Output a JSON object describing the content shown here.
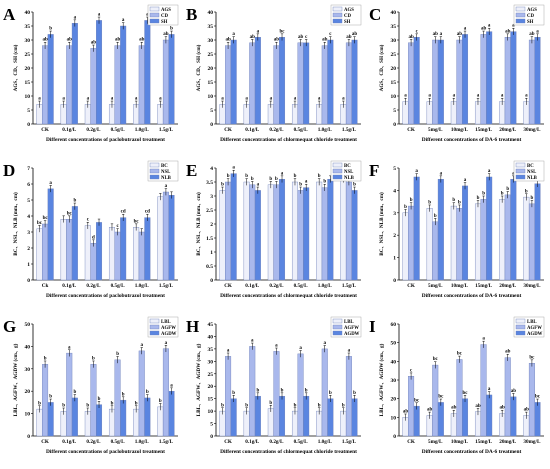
{
  "colors": {
    "s1": "#eef0fa",
    "s2": "#a9b8ec",
    "s3": "#5a85e0",
    "axis": "#000000",
    "err": "#000000"
  },
  "chart_data": [
    {
      "panel": "A",
      "type": "bar",
      "ylabel": "AGS、CD、SH (cm)",
      "xlabel": "Different concentrations of paclobutrazol treatment",
      "ylim": [
        0,
        40
      ],
      "yticks": [
        0,
        5,
        10,
        15,
        20,
        25,
        30,
        35,
        40
      ],
      "categories": [
        "CK",
        "0.1g/L",
        "0.2g/L",
        "0.5g/L",
        "1.0g/L",
        "1.5g/L"
      ],
      "series": [
        {
          "name": "AGS",
          "values": [
            7,
            7,
            7,
            7,
            7,
            7
          ],
          "letters": [
            "a",
            "a",
            "a",
            "a",
            "a",
            "a"
          ]
        },
        {
          "name": "CD",
          "values": [
            28,
            28,
            27,
            28,
            28,
            30
          ],
          "letters": [
            "ab",
            "ab",
            "ab",
            "ab",
            "ab",
            "ab"
          ]
        },
        {
          "name": "SH",
          "values": [
            32,
            36,
            37,
            35,
            37,
            32
          ],
          "letters": [
            "b",
            "a",
            "a",
            "a",
            "a",
            "b"
          ]
        }
      ]
    },
    {
      "panel": "B",
      "type": "bar",
      "ylabel": "AGS、CD、SH (cm)",
      "xlabel": "Different concentrations of chlormequat chloride treatment",
      "ylim": [
        0,
        40
      ],
      "yticks": [
        0,
        5,
        10,
        15,
        20,
        25,
        30,
        35,
        40
      ],
      "categories": [
        "CK",
        "0.1g/L",
        "0.2g/L",
        "0.5g/L",
        "1.0g/L",
        "1.5g/L"
      ],
      "series": [
        {
          "name": "AGS",
          "values": [
            7,
            7,
            7,
            7,
            7,
            7
          ],
          "letters": [
            "a",
            "a",
            "a",
            "a",
            "a",
            "a"
          ]
        },
        {
          "name": "CD",
          "values": [
            28,
            29,
            28,
            29,
            28,
            29
          ],
          "letters": [
            "ab",
            "ab",
            "ab",
            "ab",
            "ab",
            "ab"
          ]
        },
        {
          "name": "SH",
          "values": [
            30,
            31,
            31,
            29,
            30,
            30
          ],
          "letters": [
            "a",
            "a",
            "bc",
            "c",
            "c",
            "ab"
          ]
        }
      ]
    },
    {
      "panel": "C",
      "type": "bar",
      "ylabel": "AGS、CD、SH (cm)",
      "xlabel": "Different concentrations of DA-6 treatment",
      "ylim": [
        0,
        40
      ],
      "yticks": [
        0,
        5,
        10,
        15,
        20,
        25,
        30,
        35,
        40
      ],
      "categories": [
        "CK",
        "5mg/L",
        "10mg/L",
        "15mg/L",
        "20mg/L",
        "30mg/L"
      ],
      "series": [
        {
          "name": "AGS",
          "values": [
            8,
            8,
            8,
            8,
            8,
            8
          ],
          "letters": [
            "a",
            "a",
            "a",
            "a",
            "a",
            "a"
          ]
        },
        {
          "name": "CD",
          "values": [
            29,
            30,
            30,
            32,
            31,
            30
          ],
          "letters": [
            "ab",
            "ab",
            "ab",
            "ab",
            "ab",
            "ab"
          ]
        },
        {
          "name": "SH",
          "values": [
            31,
            30,
            32,
            33,
            33,
            31
          ],
          "letters": [
            "c",
            "a",
            "a",
            "a",
            "a",
            "a"
          ]
        }
      ]
    },
    {
      "panel": "D",
      "type": "bar",
      "ylabel": "BC、NSL、NLB (mm、cm)",
      "xlabel": "Different concentrations of paclobutrazol treatment",
      "ylim": [
        0,
        7
      ],
      "yticks": [
        0,
        1,
        2,
        3,
        4,
        5,
        6,
        7
      ],
      "categories": [
        "Ck",
        "0.1g/L",
        "0.2g/L",
        "0.5g/L",
        "1.0g/L",
        "1.5g/L"
      ],
      "series": [
        {
          "name": "BC",
          "values": [
            3.2,
            3.8,
            3.4,
            3.3,
            3.3,
            5.2
          ],
          "letters": [
            "bc",
            "",
            "c",
            "",
            "bc",
            ""
          ]
        },
        {
          "name": "NSL",
          "values": [
            3.5,
            3.8,
            2.3,
            3.0,
            3.0,
            5.5
          ],
          "letters": [
            "bc",
            "bc",
            "d",
            "c",
            "",
            "a"
          ]
        },
        {
          "name": "NLB",
          "values": [
            5.7,
            4.6,
            3.6,
            3.9,
            3.9,
            5.3
          ],
          "letters": [
            "a",
            "b",
            "",
            "cd",
            "cd",
            ""
          ]
        }
      ]
    },
    {
      "panel": "E",
      "type": "bar",
      "ylabel": "BC、NSL、NLB (mm、cm)",
      "xlabel": "Different concentrations of chlormequat chloride treatment",
      "ylim": [
        0,
        4
      ],
      "yticks": [
        0,
        0.5,
        1,
        1.5,
        2,
        2.5,
        3,
        3.5,
        4
      ],
      "categories": [
        "CK",
        "0.1g/L",
        "0.2g/L",
        "0.5g/L",
        "1.0g/L",
        "1.5g/L"
      ],
      "series": [
        {
          "name": "BC",
          "values": [
            3.2,
            3.5,
            3.4,
            3.5,
            3.5,
            3.6
          ],
          "letters": [
            "b",
            "b",
            "b",
            "b",
            "b",
            "b"
          ]
        },
        {
          "name": "NSL",
          "values": [
            3.5,
            3.4,
            3.4,
            3.2,
            3.3,
            3.5
          ],
          "letters": [
            "b",
            "b",
            "b",
            "b",
            "b",
            "b"
          ]
        },
        {
          "name": "NLB",
          "values": [
            3.8,
            3.2,
            3.6,
            3.3,
            3.6,
            3.2
          ],
          "letters": [
            "a",
            "a",
            "a",
            "a",
            "",
            "b"
          ]
        }
      ]
    },
    {
      "panel": "F",
      "type": "bar",
      "ylabel": "BC、NSL、NLB (mm、cm)",
      "xlabel": "Different concentrations of DA-6 treatment",
      "ylim": [
        0,
        5
      ],
      "yticks": [
        0,
        1,
        2,
        3,
        4,
        5
      ],
      "categories": [
        "CK",
        "5mg/L",
        "10mg/L",
        "15mg/L",
        "20mg/L",
        "30mg/L"
      ],
      "series": [
        {
          "name": "BC",
          "values": [
            3.0,
            3.2,
            3.3,
            3.4,
            3.6,
            3.7
          ],
          "letters": [
            "b",
            "b",
            "b",
            "b",
            "b",
            "b"
          ]
        },
        {
          "name": "NSL",
          "values": [
            3.3,
            2.6,
            3.2,
            3.6,
            3.8,
            3.4
          ],
          "letters": [
            "b",
            "b",
            "b",
            "b",
            "b",
            "b"
          ]
        },
        {
          "name": "NLB",
          "values": [
            4.6,
            4.5,
            4.2,
            4.6,
            4.5,
            4.3
          ],
          "letters": [
            "a",
            "a",
            "a",
            "a",
            "a",
            "a"
          ]
        }
      ]
    },
    {
      "panel": "G",
      "type": "bar",
      "ylabel": "LBL、AGFW、AGDW (cm、g)",
      "xlabel": "Different concentrations of paclobutrazol treatment",
      "ylim": [
        0,
        50
      ],
      "yticks": [
        0,
        10,
        20,
        30,
        40,
        50
      ],
      "categories": [
        "CK",
        "0.1g/L",
        "0.2g/L",
        "0.5g/L",
        "1.0g/L",
        "1.5g/L"
      ],
      "series": [
        {
          "name": "LBL",
          "values": [
            12,
            11,
            11,
            12,
            12,
            13
          ],
          "letters": [
            "b",
            "b",
            "b",
            "b",
            "b",
            "b"
          ]
        },
        {
          "name": "AGFW",
          "values": [
            32,
            37,
            32,
            34,
            38,
            39
          ],
          "letters": [
            "b",
            "a",
            "b",
            "b",
            "a",
            "a"
          ]
        },
        {
          "name": "AGDW",
          "values": [
            15,
            17,
            14,
            16,
            17,
            20
          ],
          "letters": [
            "b",
            "b",
            "b",
            "b",
            "b",
            "a"
          ]
        }
      ]
    },
    {
      "panel": "H",
      "type": "bar",
      "ylabel": "LBL、AGFW、AGDW (cm、g)",
      "xlabel": "Different concentrations of chlormequat chloride treatment",
      "ylim": [
        0,
        45
      ],
      "yticks": [
        0,
        5,
        10,
        15,
        20,
        25,
        30,
        35,
        40,
        45
      ],
      "categories": [
        "CK",
        "0.1g/L",
        "0.2g/L",
        "0.5g/L",
        "1.0g/L",
        "1.5g/L"
      ],
      "series": [
        {
          "name": "LBL",
          "values": [
            10,
            10,
            11,
            10,
            10,
            10
          ],
          "letters": [
            "b",
            "b",
            "b",
            "b",
            "b",
            "b"
          ]
        },
        {
          "name": "AGFW",
          "values": [
            32,
            36,
            34,
            33,
            35,
            32
          ],
          "letters": [
            "a",
            "a",
            "a",
            "a",
            "a",
            "a"
          ]
        },
        {
          "name": "AGDW",
          "values": [
            15,
            16,
            16,
            16,
            15,
            15
          ],
          "letters": [
            "b",
            "b",
            "b",
            "b",
            "b",
            "b"
          ]
        }
      ]
    },
    {
      "panel": "I",
      "type": "bar",
      "ylabel": "LBL、AGFW、AGDW (cm、g)",
      "xlabel": "Different concentrations of DA-6 treatment",
      "ylim": [
        0,
        60
      ],
      "yticks": [
        0,
        10,
        20,
        30,
        40,
        50,
        60
      ],
      "categories": [
        "CK",
        "5mg/L",
        "10mg/L",
        "15mg/L",
        "20mg/L",
        "30mg/L"
      ],
      "series": [
        {
          "name": "LBL",
          "values": [
            10,
            11,
            12,
            13,
            12,
            11
          ],
          "letters": [
            "ab",
            "ab",
            "ab",
            "ab",
            "ab",
            "ab"
          ]
        },
        {
          "name": "AGFW",
          "values": [
            32,
            38,
            41,
            49,
            42,
            39
          ],
          "letters": [
            "c",
            "bc",
            "bc",
            "a",
            "ab",
            "bc"
          ]
        },
        {
          "name": "AGDW",
          "values": [
            16,
            18,
            20,
            22,
            21,
            18
          ],
          "letters": [
            "bc",
            "bc",
            "bc",
            "a",
            "ab",
            "bc"
          ]
        }
      ]
    }
  ]
}
